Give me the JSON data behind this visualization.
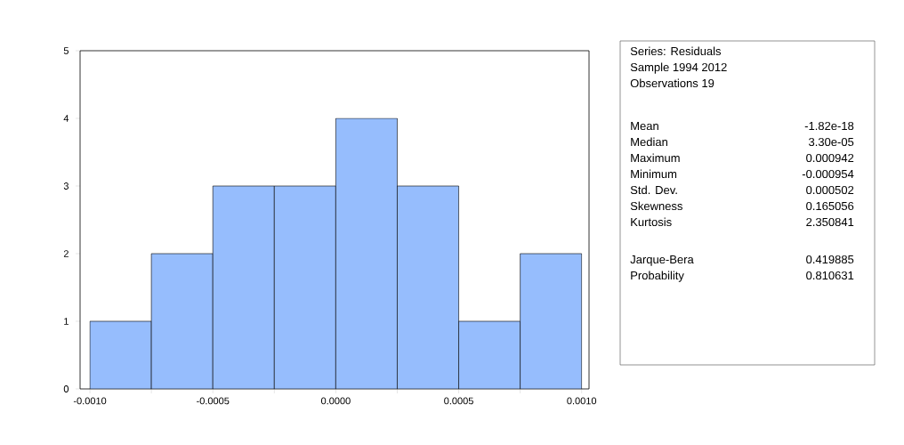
{
  "chart_data": {
    "type": "histogram",
    "bins": [
      -0.001,
      -0.00075,
      -0.0005,
      -0.00025,
      0.0,
      0.00025,
      0.0005,
      0.00075,
      0.001
    ],
    "values": [
      1,
      2,
      3,
      3,
      4,
      3,
      1,
      2
    ],
    "color": "#96bdfd",
    "xlim": [
      -0.00104,
      0.00103
    ],
    "ylim": [
      0,
      5
    ],
    "yticks": [
      0,
      1,
      2,
      3,
      4,
      5
    ],
    "xticks": [
      {
        "value": -0.001,
        "label": "-0.0010"
      },
      {
        "value": -0.00075,
        "label": null
      },
      {
        "value": -0.0005,
        "label": "-0.0005"
      },
      {
        "value": -0.00025,
        "label": null
      },
      {
        "value": 0.0,
        "label": "0.0000"
      },
      {
        "value": 0.00025,
        "label": null
      },
      {
        "value": 0.0005,
        "label": "0.0005"
      },
      {
        "value": 0.00075,
        "label": null
      },
      {
        "value": 0.001,
        "label": "0.0010"
      }
    ],
    "grid": false,
    "annotations": [
      "Series: Residuals",
      "Sample 1994 2012",
      "Observations 19",
      "Mean",
      "-1.82e-18",
      "Median",
      "3.30e-05",
      "Maximum",
      "0.000942",
      "Minimum",
      "-0.000954",
      "Std. Dev.",
      "0.000502",
      "Skewness",
      "0.165056",
      "Kurtosis",
      "2.350841",
      "Jarque-Bera",
      "0.419885",
      "Probability",
      "0.810631"
    ]
  }
}
